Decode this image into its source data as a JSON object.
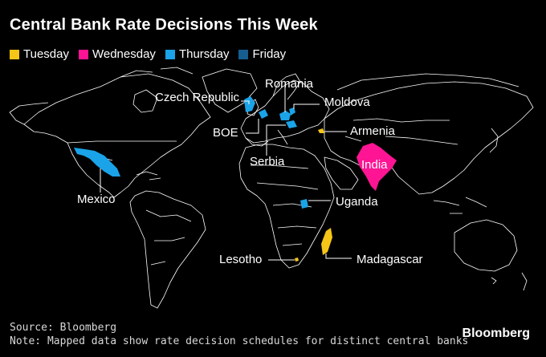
{
  "title": "Central Bank Rate Decisions This Week",
  "legend": [
    {
      "label": "Tuesday",
      "color": "#f5c518"
    },
    {
      "label": "Wednesday",
      "color": "#ff1493"
    },
    {
      "label": "Thursday",
      "color": "#1aa3e8"
    },
    {
      "label": "Friday",
      "color": "#155e8f"
    }
  ],
  "callouts": {
    "romania": "Romania",
    "czech": "Czech Republic",
    "moldova": "Moldova",
    "boe": "BOE",
    "armenia": "Armenia",
    "india": "India",
    "serbia": "Serbia",
    "mexico": "Mexico",
    "uganda": "Uganda",
    "lesotho": "Lesotho",
    "madagascar": "Madagascar"
  },
  "decisions": [
    {
      "country": "India",
      "day": "Wednesday"
    },
    {
      "country": "Mexico",
      "day": "Thursday"
    },
    {
      "country": "Czech Republic",
      "day": "Thursday"
    },
    {
      "country": "Romania",
      "day": "Thursday"
    },
    {
      "country": "Moldova",
      "day": "Thursday"
    },
    {
      "country": "BOE",
      "day": "Thursday"
    },
    {
      "country": "Serbia",
      "day": "Thursday"
    },
    {
      "country": "Uganda",
      "day": "Thursday"
    },
    {
      "country": "Armenia",
      "day": "Tuesday"
    },
    {
      "country": "Madagascar",
      "day": "Tuesday"
    },
    {
      "country": "Lesotho",
      "day": "Tuesday"
    }
  ],
  "footer": {
    "source": "Source: Bloomberg",
    "note": "Note: Mapped data show rate decision schedules for distinct central banks"
  },
  "brand": "Bloomberg"
}
